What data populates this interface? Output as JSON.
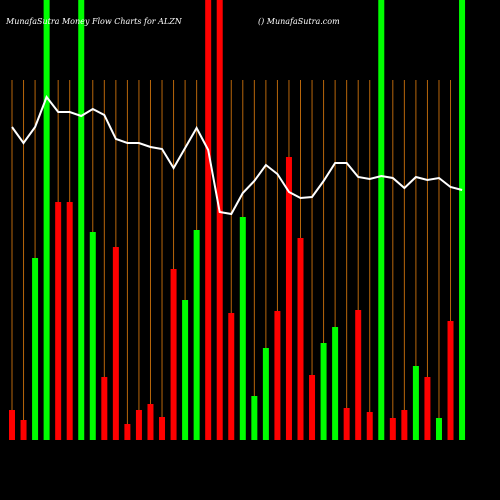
{
  "chart_data": {
    "type": "bar",
    "title": "MunafaSutra  Money Flow  Charts for ALZN",
    "subtitle": "() MunafaSutra.com",
    "categories": [
      null,
      null,
      null,
      null,
      null,
      null,
      null,
      null,
      null,
      null,
      null,
      null,
      null,
      null,
      null,
      null,
      null,
      null,
      null,
      null,
      null,
      null,
      null,
      null,
      null,
      null,
      null,
      null,
      null,
      null,
      null,
      null,
      null,
      null,
      null,
      null,
      null,
      null,
      null,
      null
    ],
    "values": [
      30,
      20,
      182,
      440,
      238,
      238,
      440,
      208,
      63,
      193,
      16,
      30,
      36,
      23,
      171,
      140,
      210,
      440,
      440,
      127,
      223,
      44,
      92,
      129,
      283,
      202,
      65,
      97,
      113,
      32,
      130,
      28,
      440,
      22,
      30,
      74,
      63,
      22,
      119,
      440
    ],
    "colors": [
      "#ff0000",
      "#ff0000",
      "#00ff00",
      "#00ff00",
      "#ff0000",
      "#ff0000",
      "#00ff00",
      "#00ff00",
      "#ff0000",
      "#ff0000",
      "#ff0000",
      "#ff0000",
      "#ff0000",
      "#ff0000",
      "#ff0000",
      "#00ff00",
      "#00ff00",
      "#ff0000",
      "#ff0000",
      "#ff0000",
      "#00ff00",
      "#00ff00",
      "#00ff00",
      "#ff0000",
      "#ff0000",
      "#ff0000",
      "#ff0000",
      "#00ff00",
      "#00ff00",
      "#ff0000",
      "#ff0000",
      "#ff0000",
      "#00ff00",
      "#ff0000",
      "#ff0000",
      "#00ff00",
      "#ff0000",
      "#00ff00",
      "#ff0000",
      "#00ff00"
    ],
    "line": {
      "color": "#ffffff",
      "values": [
        313,
        297,
        313,
        343,
        328,
        328,
        324,
        331,
        325,
        301,
        297,
        297,
        293,
        291,
        272,
        292,
        312,
        290,
        228,
        226,
        247,
        259,
        275,
        266,
        248,
        242,
        243,
        259,
        277,
        277,
        263,
        261,
        264,
        262,
        252,
        263,
        260,
        262,
        253,
        250
      ]
    },
    "grid_color": "#b8660b",
    "ylim": [
      0,
      440
    ]
  }
}
